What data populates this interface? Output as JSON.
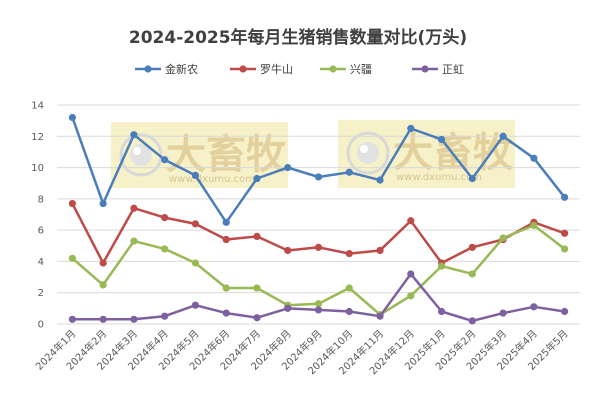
{
  "chart_data": {
    "type": "line",
    "title": "2024-2025年每月生猪销售数量对比(万头)",
    "xlabel": "",
    "ylabel": "",
    "categories": [
      "2024年1月",
      "2024年2月",
      "2024年3月",
      "2024年4月",
      "2024年5月",
      "2024年6月",
      "2024年7月",
      "2024年8月",
      "2024年9月",
      "2024年10月",
      "2024年11月",
      "2024年12月",
      "2025年1月",
      "2025年2月",
      "2025年3月",
      "2025年4月",
      "2025年5月"
    ],
    "ylim": [
      0,
      14
    ],
    "yticks": [
      0,
      2,
      4,
      6,
      8,
      10,
      12,
      14
    ],
    "grid": true,
    "legend_position": "top",
    "series": [
      {
        "name": "金新农",
        "color": "#4a7ebb",
        "values": [
          13.2,
          7.7,
          12.1,
          10.5,
          9.5,
          6.5,
          9.3,
          10.0,
          9.4,
          9.7,
          9.2,
          12.5,
          11.8,
          9.3,
          12.0,
          10.6,
          8.1
        ]
      },
      {
        "name": "罗牛山",
        "color": "#be4b48",
        "values": [
          7.7,
          3.9,
          7.4,
          6.8,
          6.4,
          5.4,
          5.6,
          4.7,
          4.9,
          4.5,
          4.7,
          6.6,
          3.9,
          4.9,
          5.4,
          6.5,
          5.8
        ]
      },
      {
        "name": "兴疆",
        "color": "#98b954",
        "values": [
          4.2,
          2.5,
          5.3,
          4.8,
          3.9,
          2.3,
          2.3,
          1.2,
          1.3,
          2.3,
          0.6,
          1.8,
          3.7,
          3.2,
          5.5,
          6.3,
          4.8
        ]
      },
      {
        "name": "正虹",
        "color": "#7d60a0",
        "values": [
          0.3,
          0.3,
          0.3,
          0.5,
          1.2,
          0.7,
          0.4,
          1.0,
          0.9,
          0.8,
          0.5,
          3.2,
          0.8,
          0.2,
          0.7,
          1.1,
          0.8
        ]
      }
    ]
  },
  "watermark": {
    "logo_text": "大畜牧",
    "url": "www.dxumu.com"
  }
}
